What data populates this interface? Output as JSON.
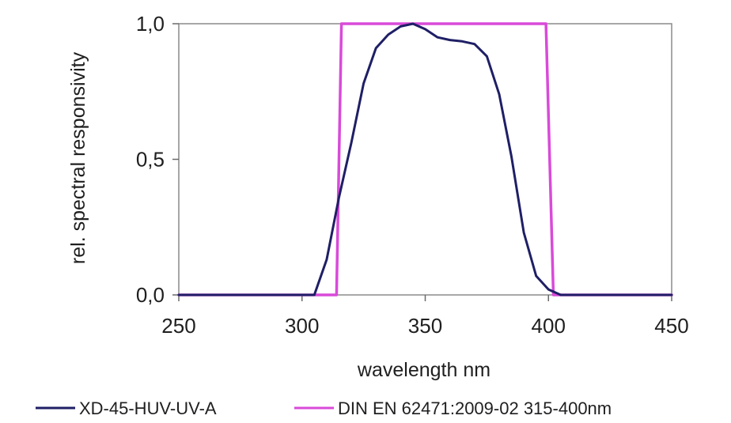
{
  "chart_data": {
    "type": "line",
    "title": "",
    "xlabel": "wavelength nm",
    "ylabel": "rel. spectral responsivity",
    "xlim": [
      250,
      450
    ],
    "ylim": [
      0,
      1
    ],
    "x_ticks": [
      250,
      300,
      350,
      400,
      450
    ],
    "x_tick_labels": [
      "250",
      "300",
      "350",
      "400",
      "450"
    ],
    "y_ticks": [
      0,
      0.5,
      1
    ],
    "y_tick_labels": [
      "0,0",
      "0,5",
      "1,0"
    ],
    "grid": false,
    "legend_position": "bottom",
    "series": [
      {
        "name": "XD-45-HUV-UV-A",
        "color": "#1f1f66",
        "x": [
          250,
          305,
          310,
          315,
          320,
          325,
          330,
          335,
          340,
          345,
          350,
          355,
          360,
          365,
          370,
          375,
          380,
          385,
          390,
          395,
          400,
          405,
          450
        ],
        "y": [
          0,
          0,
          0.13,
          0.36,
          0.56,
          0.78,
          0.91,
          0.96,
          0.99,
          1.0,
          0.98,
          0.95,
          0.94,
          0.935,
          0.925,
          0.88,
          0.74,
          0.51,
          0.23,
          0.07,
          0.02,
          0,
          0
        ]
      },
      {
        "name": "DIN EN 62471:2009-02 315-400nm",
        "color": "#d94ad9",
        "x": [
          250,
          314,
          316,
          399,
          402,
          450
        ],
        "y": [
          0,
          0,
          1,
          1,
          0,
          0
        ]
      }
    ]
  }
}
